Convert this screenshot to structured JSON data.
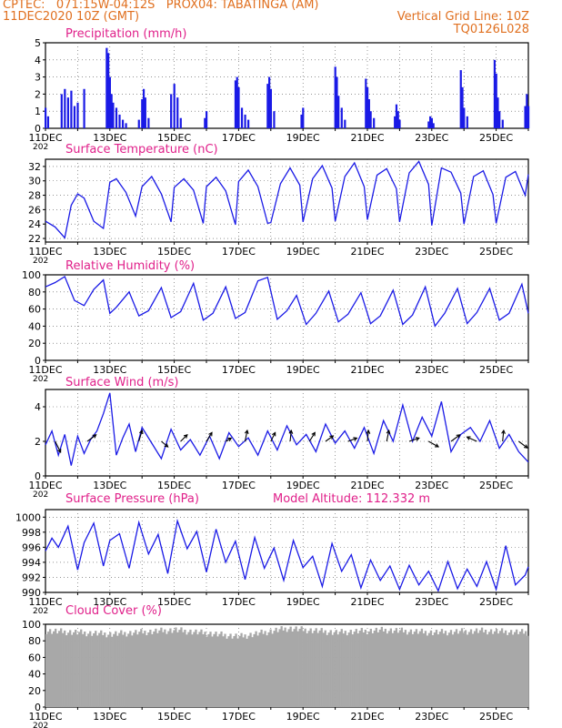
{
  "header": {
    "line1_left": "CPTEC:   071:15W-04:12S   PROX04: TABATINGA (AM)",
    "line2_left": "11DEC2020 10Z (GMT)",
    "line2_right": "Vertical Grid Line: 10Z",
    "line3_right": "TQ0126L028"
  },
  "colors": {
    "header": "#e07020",
    "title": "#e0208a",
    "series": "#1a1ae6",
    "cloud": "#a8a8a8",
    "wind_arrow": "#000000"
  },
  "x_axis": {
    "ticks": [
      "11DEC",
      "13DEC",
      "15DEC",
      "17DEC",
      "19DEC",
      "21DEC",
      "23DEC",
      "25DEC"
    ],
    "truncated_year_label": "202",
    "range_days": [
      0,
      15
    ]
  },
  "chart_data": [
    {
      "type": "bar",
      "title": "Precipitation (mm/h)",
      "ylim": [
        0,
        5
      ],
      "yticks": [
        "0",
        "1",
        "2",
        "3",
        "4",
        "5"
      ],
      "grid": true,
      "bars": [
        [
          0.0,
          1.2
        ],
        [
          0.08,
          0.7
        ],
        [
          0.5,
          2.0
        ],
        [
          0.6,
          2.3
        ],
        [
          0.7,
          1.8
        ],
        [
          0.8,
          2.2
        ],
        [
          0.9,
          1.3
        ],
        [
          1.0,
          1.5
        ],
        [
          1.2,
          2.3
        ],
        [
          1.9,
          4.7
        ],
        [
          1.95,
          4.4
        ],
        [
          2.0,
          3.0
        ],
        [
          2.05,
          2.0
        ],
        [
          2.1,
          1.5
        ],
        [
          2.2,
          1.2
        ],
        [
          2.3,
          0.8
        ],
        [
          2.4,
          0.5
        ],
        [
          2.5,
          0.3
        ],
        [
          2.9,
          0.5
        ],
        [
          3.0,
          1.7
        ],
        [
          3.05,
          2.3
        ],
        [
          3.1,
          1.8
        ],
        [
          3.2,
          0.6
        ],
        [
          3.9,
          2.0
        ],
        [
          4.0,
          2.6
        ],
        [
          4.1,
          1.8
        ],
        [
          4.2,
          0.6
        ],
        [
          4.95,
          0.6
        ],
        [
          5.0,
          1.0
        ],
        [
          5.9,
          2.8
        ],
        [
          5.95,
          3.0
        ],
        [
          6.0,
          2.4
        ],
        [
          6.1,
          1.2
        ],
        [
          6.2,
          0.8
        ],
        [
          6.3,
          0.5
        ],
        [
          6.9,
          2.6
        ],
        [
          6.95,
          3.0
        ],
        [
          7.0,
          2.3
        ],
        [
          7.1,
          1.0
        ],
        [
          7.95,
          0.8
        ],
        [
          8.0,
          1.2
        ],
        [
          9.0,
          3.6
        ],
        [
          9.05,
          3.0
        ],
        [
          9.1,
          1.9
        ],
        [
          9.2,
          1.2
        ],
        [
          9.3,
          0.5
        ],
        [
          9.95,
          2.9
        ],
        [
          10.0,
          2.4
        ],
        [
          10.05,
          1.7
        ],
        [
          10.1,
          1.0
        ],
        [
          10.2,
          0.6
        ],
        [
          10.85,
          0.7
        ],
        [
          10.9,
          1.4
        ],
        [
          10.95,
          1.0
        ],
        [
          11.0,
          0.5
        ],
        [
          11.9,
          0.4
        ],
        [
          11.95,
          0.7
        ],
        [
          12.0,
          0.6
        ],
        [
          12.05,
          0.3
        ],
        [
          12.9,
          3.4
        ],
        [
          12.95,
          2.4
        ],
        [
          13.0,
          1.2
        ],
        [
          13.1,
          0.7
        ],
        [
          13.95,
          4.0
        ],
        [
          14.0,
          3.2
        ],
        [
          14.05,
          1.8
        ],
        [
          14.1,
          1.0
        ],
        [
          14.2,
          0.5
        ],
        [
          14.9,
          1.3
        ],
        [
          14.95,
          2.0
        ],
        [
          15.0,
          1.3
        ]
      ]
    },
    {
      "type": "line",
      "title": "Surface Temperature (nC)",
      "ylim": [
        21.5,
        33
      ],
      "yticks": [
        "22",
        "24",
        "26",
        "28",
        "30",
        "32"
      ],
      "grid": true,
      "x": [
        0,
        0.3,
        0.6,
        0.8,
        1.0,
        1.2,
        1.5,
        1.8,
        2.0,
        2.2,
        2.5,
        2.8,
        3.0,
        3.3,
        3.6,
        3.9,
        4.0,
        4.3,
        4.6,
        4.9,
        5.0,
        5.3,
        5.6,
        5.9,
        6.0,
        6.3,
        6.6,
        6.9,
        7.0,
        7.3,
        7.6,
        7.9,
        8.0,
        8.3,
        8.6,
        8.9,
        9.0,
        9.3,
        9.6,
        9.9,
        10.0,
        10.3,
        10.6,
        10.9,
        11.0,
        11.3,
        11.6,
        11.9,
        12.0,
        12.3,
        12.6,
        12.9,
        13.0,
        13.3,
        13.6,
        13.9,
        14.0,
        14.3,
        14.6,
        14.9,
        15.0
      ],
      "y": [
        24.4,
        23.6,
        22.1,
        26.6,
        28.2,
        27.6,
        24.4,
        23.4,
        29.8,
        30.3,
        28.4,
        25.1,
        29.2,
        30.6,
        28.2,
        24.3,
        29.1,
        30.3,
        28.7,
        24.1,
        29.2,
        30.5,
        28.6,
        23.9,
        29.9,
        31.5,
        29.2,
        24.1,
        24.2,
        29.6,
        31.8,
        29.4,
        24.3,
        30.3,
        32.1,
        29.0,
        24.4,
        30.6,
        32.5,
        29.2,
        24.6,
        30.8,
        31.7,
        28.9,
        24.3,
        31.1,
        32.7,
        29.5,
        23.8,
        31.8,
        31.2,
        28.3,
        24.0,
        30.6,
        31.4,
        28.1,
        24.1,
        30.5,
        31.3,
        28.0,
        30.9
      ]
    },
    {
      "type": "line",
      "title": "Relative Humidity (%)",
      "ylim": [
        0,
        100
      ],
      "yticks": [
        "0",
        "20",
        "40",
        "60",
        "80",
        "100"
      ],
      "grid": true,
      "x": [
        0,
        0.3,
        0.6,
        0.9,
        1.2,
        1.5,
        1.8,
        2.0,
        2.2,
        2.6,
        2.9,
        3.2,
        3.6,
        3.9,
        4.2,
        4.6,
        4.9,
        5.2,
        5.6,
        5.9,
        6.2,
        6.6,
        6.9,
        7.2,
        7.5,
        7.8,
        8.1,
        8.4,
        8.8,
        9.1,
        9.4,
        9.8,
        10.1,
        10.4,
        10.8,
        11.1,
        11.4,
        11.8,
        12.1,
        12.4,
        12.8,
        13.1,
        13.4,
        13.8,
        14.1,
        14.4,
        14.8,
        15.0
      ],
      "y": [
        86,
        91,
        98,
        70,
        64,
        83,
        94,
        55,
        62,
        80,
        52,
        58,
        85,
        50,
        57,
        90,
        47,
        55,
        86,
        49,
        56,
        93,
        97,
        48,
        58,
        76,
        42,
        55,
        81,
        45,
        54,
        79,
        43,
        52,
        82,
        42,
        53,
        86,
        40,
        55,
        84,
        43,
        56,
        84,
        47,
        55,
        89,
        55
      ]
    },
    {
      "type": "line",
      "title": "Surface Wind (m/s)",
      "ylim": [
        0,
        5
      ],
      "yticks": [
        "0",
        "2",
        "4"
      ],
      "grid": true,
      "x": [
        0,
        0.2,
        0.4,
        0.6,
        0.8,
        1.0,
        1.2,
        1.4,
        1.6,
        1.8,
        2.0,
        2.2,
        2.4,
        2.6,
        2.8,
        3.0,
        3.3,
        3.6,
        3.9,
        4.2,
        4.5,
        4.8,
        5.1,
        5.4,
        5.7,
        6.0,
        6.3,
        6.6,
        6.9,
        7.2,
        7.5,
        7.8,
        8.1,
        8.4,
        8.7,
        9.0,
        9.3,
        9.6,
        9.9,
        10.2,
        10.5,
        10.8,
        11.1,
        11.4,
        11.7,
        12.0,
        12.3,
        12.6,
        12.9,
        13.2,
        13.5,
        13.8,
        14.1,
        14.4,
        14.7,
        15.0
      ],
      "y": [
        1.8,
        2.6,
        1.2,
        2.4,
        0.6,
        2.3,
        1.3,
        2.1,
        2.6,
        3.6,
        4.8,
        1.2,
        2.2,
        3.0,
        1.4,
        2.8,
        1.9,
        1.0,
        2.7,
        1.5,
        2.1,
        1.2,
        2.3,
        1.0,
        2.5,
        1.7,
        2.2,
        1.2,
        2.6,
        1.5,
        2.9,
        1.8,
        2.4,
        1.4,
        3.0,
        1.9,
        2.6,
        1.6,
        2.8,
        1.3,
        3.2,
        2.0,
        4.1,
        2.0,
        3.4,
        2.3,
        4.3,
        1.4,
        2.4,
        2.8,
        2.0,
        3.2,
        1.6,
        2.4,
        1.4,
        0.8
      ],
      "arrows": [
        [
          0.3,
          0.5,
          -1.0
        ],
        [
          1.3,
          0.8,
          0.6
        ],
        [
          2.9,
          0.3,
          1.0
        ],
        [
          3.6,
          0.6,
          -0.5
        ],
        [
          4.2,
          0.6,
          0.6
        ],
        [
          5.0,
          0.5,
          0.8
        ],
        [
          5.6,
          0.5,
          0.3
        ],
        [
          6.2,
          0.2,
          1.0
        ],
        [
          7.0,
          0.4,
          0.8
        ],
        [
          7.6,
          0.1,
          1.0
        ],
        [
          8.2,
          0.5,
          0.8
        ],
        [
          8.7,
          0.7,
          0.5
        ],
        [
          9.4,
          0.8,
          0.3
        ],
        [
          10.0,
          0.1,
          1.0
        ],
        [
          10.6,
          0.2,
          1.0
        ],
        [
          11.3,
          0.9,
          0.3
        ],
        [
          11.9,
          0.9,
          -0.5
        ],
        [
          12.6,
          0.8,
          0.6
        ],
        [
          13.4,
          -0.9,
          0.4
        ],
        [
          14.2,
          0.1,
          1.0
        ],
        [
          14.7,
          0.8,
          -0.6
        ]
      ]
    },
    {
      "type": "line",
      "title": "Surface Pressure (hPa)",
      "annotation": "Model Altitude: 112.332 m",
      "ylim": [
        990,
        1001
      ],
      "yticks": [
        "990",
        "992",
        "994",
        "996",
        "998",
        "1000"
      ],
      "grid": true,
      "x": [
        0,
        0.2,
        0.4,
        0.7,
        1.0,
        1.2,
        1.5,
        1.8,
        2.0,
        2.3,
        2.6,
        2.9,
        3.2,
        3.5,
        3.8,
        4.1,
        4.4,
        4.7,
        5.0,
        5.3,
        5.6,
        5.9,
        6.2,
        6.5,
        6.8,
        7.1,
        7.4,
        7.7,
        8.0,
        8.3,
        8.6,
        8.9,
        9.2,
        9.5,
        9.8,
        10.1,
        10.4,
        10.7,
        11.0,
        11.3,
        11.6,
        11.9,
        12.2,
        12.5,
        12.8,
        13.1,
        13.4,
        13.7,
        14.0,
        14.3,
        14.6,
        14.9,
        15.0
      ],
      "y": [
        995.5,
        997.2,
        996.0,
        998.8,
        993.0,
        996.6,
        999.2,
        993.5,
        996.9,
        997.8,
        993.2,
        999.3,
        995.1,
        997.7,
        992.5,
        999.5,
        995.8,
        998.1,
        992.7,
        998.4,
        994.0,
        996.8,
        991.7,
        997.3,
        993.2,
        995.9,
        991.6,
        996.9,
        993.3,
        994.8,
        990.8,
        996.5,
        992.8,
        995.0,
        990.6,
        994.3,
        991.6,
        993.5,
        990.4,
        993.6,
        991.0,
        992.8,
        990.2,
        994.1,
        990.5,
        993.1,
        990.8,
        994.1,
        990.4,
        996.2,
        991.0,
        992.3,
        993.4
      ]
    },
    {
      "type": "bar",
      "title": "Cloud Cover (%)",
      "ylim": [
        0,
        100
      ],
      "yticks": [
        "0",
        "20",
        "40",
        "60",
        "80",
        "100"
      ],
      "grid": true,
      "y_profile": [
        [
          0,
          92
        ],
        [
          2,
          88
        ],
        [
          4,
          93
        ],
        [
          6,
          85
        ],
        [
          7.5,
          95
        ],
        [
          9,
          90
        ],
        [
          10.5,
          93
        ],
        [
          12,
          90
        ],
        [
          13.5,
          92
        ],
        [
          15,
          90
        ]
      ]
    }
  ]
}
